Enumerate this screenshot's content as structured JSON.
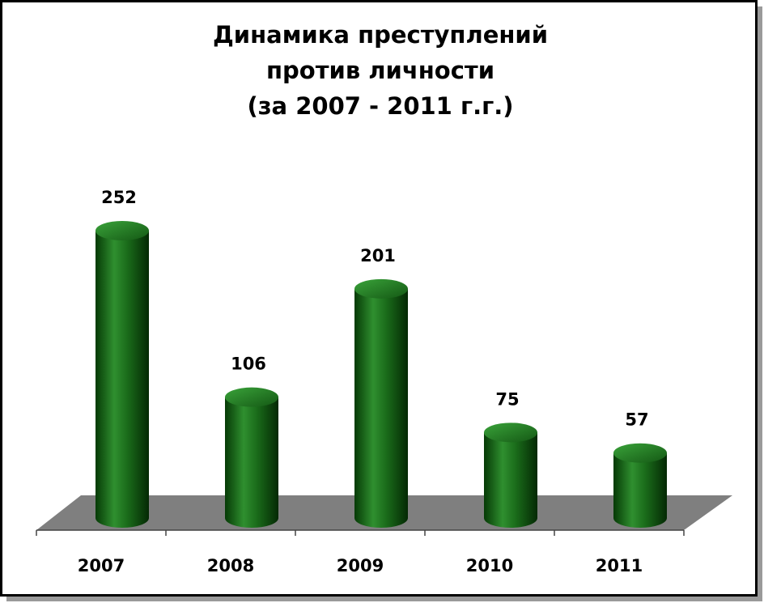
{
  "chart_data": {
    "type": "bar",
    "title": [
      "Динамика преступлений",
      "против личности",
      "(за 2007 - 2011 г.г.)"
    ],
    "categories": [
      "2007",
      "2008",
      "2009",
      "2010",
      "2011"
    ],
    "values": [
      252,
      106,
      201,
      75,
      57
    ],
    "color": "#1a6b1a"
  }
}
